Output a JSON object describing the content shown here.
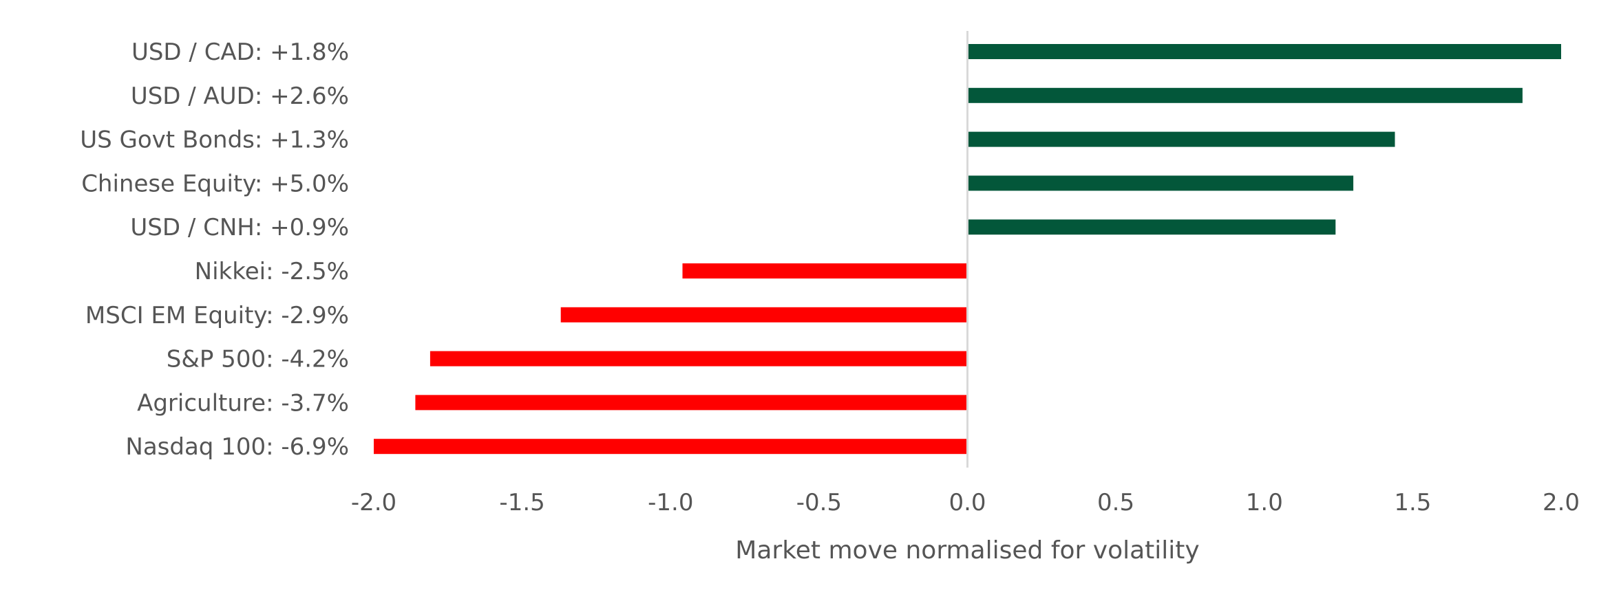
{
  "chart_data": {
    "type": "bar",
    "orientation": "horizontal",
    "title": "",
    "xlabel": "Market move normalised for volatility",
    "ylabel": "",
    "xlim": [
      -2.0,
      2.0
    ],
    "xticks": [
      "-2.0",
      "-1.5",
      "-1.0",
      "-0.5",
      "0.0",
      "0.5",
      "1.0",
      "1.5",
      "2.0"
    ],
    "grid": false,
    "legend": "none",
    "colors": {
      "positive": "#03573a",
      "negative": "#ff0000",
      "zero_line": "#d9d9d9",
      "text": "#555555"
    },
    "categories": [
      "USD / CAD: +1.8%",
      "USD / AUD: +2.6%",
      "US Govt Bonds: +1.3%",
      "Chinese Equity: +5.0%",
      "USD / CNH: +0.9%",
      "Nikkei: -2.5%",
      "MSCI EM Equity: -2.9%",
      "S&P 500: -4.2%",
      "Agriculture: -3.7%",
      "Nasdaq 100: -6.9%"
    ],
    "values": [
      2.0,
      1.87,
      1.44,
      1.3,
      1.24,
      -0.96,
      -1.37,
      -1.81,
      -1.86,
      -2.0
    ]
  }
}
